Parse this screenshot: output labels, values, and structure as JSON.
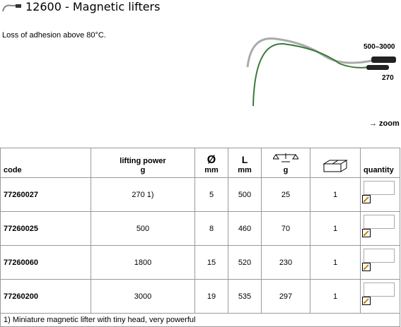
{
  "header": {
    "title": "12600 - Magnetic lifters"
  },
  "intro": "Loss of adhesion above 80°C.",
  "image": {
    "labels": [
      "500–3000",
      "270"
    ],
    "zoom": "→ zoom"
  },
  "table": {
    "headers": {
      "code": "code",
      "lifting_power": [
        "lifting power",
        "g"
      ],
      "diameter": [
        "Ø",
        "mm"
      ],
      "length": [
        "L",
        "mm"
      ],
      "weight": "g",
      "quantity": "quantity"
    },
    "rows": [
      [
        "77260027",
        "270 1)",
        "5",
        "500",
        "25",
        "1"
      ],
      [
        "77260025",
        "500",
        "8",
        "460",
        "70",
        "1"
      ],
      [
        "77260060",
        "1800",
        "15",
        "520",
        "230",
        "1"
      ],
      [
        "77260200",
        "3000",
        "19",
        "535",
        "297",
        "1"
      ]
    ],
    "footnote": "1) Miniature magnetic lifter with tiny head, very powerful"
  }
}
